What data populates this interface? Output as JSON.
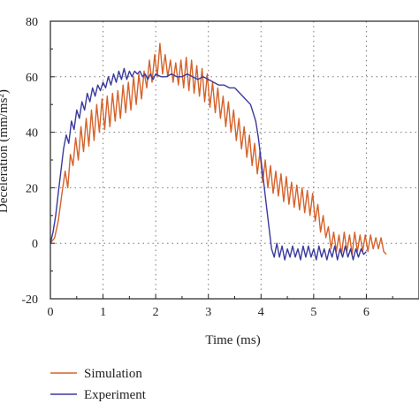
{
  "chart_data": {
    "type": "line",
    "title": "",
    "xlabel": "Time (ms)",
    "ylabel": "Deceleration (mm/ms²)",
    "xlim": [
      0,
      7
    ],
    "ylim": [
      -20,
      80
    ],
    "xticks": [
      0,
      1,
      2,
      3,
      4,
      5,
      6
    ],
    "yticks": [
      -20,
      0,
      20,
      40,
      60,
      80
    ],
    "grid": true,
    "grid_style": "dotted",
    "legend_placement": "bottom-left, below plot",
    "series": [
      {
        "name": "Simulation",
        "color": "#d5622a",
        "points": [
          [
            0.0,
            0
          ],
          [
            0.08,
            2
          ],
          [
            0.15,
            8
          ],
          [
            0.22,
            18
          ],
          [
            0.28,
            26
          ],
          [
            0.33,
            20
          ],
          [
            0.38,
            32
          ],
          [
            0.43,
            28
          ],
          [
            0.48,
            38
          ],
          [
            0.53,
            30
          ],
          [
            0.58,
            42
          ],
          [
            0.63,
            33
          ],
          [
            0.68,
            45
          ],
          [
            0.73,
            35
          ],
          [
            0.78,
            48
          ],
          [
            0.83,
            37
          ],
          [
            0.88,
            50
          ],
          [
            0.93,
            40
          ],
          [
            0.98,
            52
          ],
          [
            1.03,
            41
          ],
          [
            1.08,
            53
          ],
          [
            1.13,
            42
          ],
          [
            1.18,
            54
          ],
          [
            1.23,
            44
          ],
          [
            1.28,
            55
          ],
          [
            1.33,
            45
          ],
          [
            1.38,
            57
          ],
          [
            1.43,
            47
          ],
          [
            1.48,
            58
          ],
          [
            1.53,
            48
          ],
          [
            1.58,
            60
          ],
          [
            1.63,
            50
          ],
          [
            1.68,
            61
          ],
          [
            1.73,
            52
          ],
          [
            1.78,
            62
          ],
          [
            1.83,
            56
          ],
          [
            1.88,
            66
          ],
          [
            1.93,
            58
          ],
          [
            1.98,
            68
          ],
          [
            2.03,
            60
          ],
          [
            2.08,
            72
          ],
          [
            2.13,
            61
          ],
          [
            2.18,
            68
          ],
          [
            2.23,
            60
          ],
          [
            2.28,
            66
          ],
          [
            2.33,
            58
          ],
          [
            2.38,
            65
          ],
          [
            2.43,
            57
          ],
          [
            2.48,
            66
          ],
          [
            2.53,
            56
          ],
          [
            2.58,
            67
          ],
          [
            2.63,
            55
          ],
          [
            2.68,
            66
          ],
          [
            2.73,
            54
          ],
          [
            2.78,
            64
          ],
          [
            2.83,
            53
          ],
          [
            2.88,
            63
          ],
          [
            2.93,
            51
          ],
          [
            2.98,
            61
          ],
          [
            3.03,
            49
          ],
          [
            3.08,
            58
          ],
          [
            3.13,
            47
          ],
          [
            3.18,
            56
          ],
          [
            3.23,
            45
          ],
          [
            3.28,
            53
          ],
          [
            3.33,
            42
          ],
          [
            3.38,
            51
          ],
          [
            3.43,
            40
          ],
          [
            3.48,
            48
          ],
          [
            3.53,
            37
          ],
          [
            3.58,
            45
          ],
          [
            3.63,
            34
          ],
          [
            3.68,
            42
          ],
          [
            3.73,
            31
          ],
          [
            3.78,
            39
          ],
          [
            3.83,
            28
          ],
          [
            3.88,
            36
          ],
          [
            3.93,
            25
          ],
          [
            3.98,
            33
          ],
          [
            4.03,
            22
          ],
          [
            4.08,
            30
          ],
          [
            4.13,
            20
          ],
          [
            4.18,
            28
          ],
          [
            4.23,
            18
          ],
          [
            4.28,
            26
          ],
          [
            4.33,
            17
          ],
          [
            4.38,
            25
          ],
          [
            4.43,
            15
          ],
          [
            4.48,
            24
          ],
          [
            4.53,
            14
          ],
          [
            4.58,
            22
          ],
          [
            4.63,
            13
          ],
          [
            4.68,
            21
          ],
          [
            4.73,
            12
          ],
          [
            4.78,
            20
          ],
          [
            4.83,
            11
          ],
          [
            4.88,
            19
          ],
          [
            4.93,
            10
          ],
          [
            4.98,
            18
          ],
          [
            5.03,
            8
          ],
          [
            5.08,
            14
          ],
          [
            5.13,
            4
          ],
          [
            5.18,
            10
          ],
          [
            5.23,
            2
          ],
          [
            5.28,
            6
          ],
          [
            5.33,
            -2
          ],
          [
            5.38,
            4
          ],
          [
            5.43,
            -3
          ],
          [
            5.48,
            3
          ],
          [
            5.53,
            -4
          ],
          [
            5.58,
            4
          ],
          [
            5.63,
            -3
          ],
          [
            5.68,
            3
          ],
          [
            5.73,
            -4
          ],
          [
            5.78,
            4
          ],
          [
            5.83,
            -3
          ],
          [
            5.88,
            3
          ],
          [
            5.93,
            -3
          ],
          [
            5.98,
            3
          ],
          [
            6.03,
            -3
          ],
          [
            6.08,
            3
          ],
          [
            6.13,
            -2
          ],
          [
            6.18,
            2
          ],
          [
            6.23,
            -2
          ],
          [
            6.28,
            2
          ],
          [
            6.33,
            -3
          ],
          [
            6.38,
            -4
          ]
        ]
      },
      {
        "name": "Experiment",
        "color": "#3a3a9e",
        "points": [
          [
            0.0,
            0
          ],
          [
            0.05,
            4
          ],
          [
            0.1,
            10
          ],
          [
            0.15,
            18
          ],
          [
            0.2,
            26
          ],
          [
            0.25,
            34
          ],
          [
            0.3,
            39
          ],
          [
            0.35,
            36
          ],
          [
            0.4,
            44
          ],
          [
            0.45,
            41
          ],
          [
            0.5,
            48
          ],
          [
            0.55,
            45
          ],
          [
            0.6,
            51
          ],
          [
            0.65,
            48
          ],
          [
            0.7,
            54
          ],
          [
            0.75,
            51
          ],
          [
            0.8,
            56
          ],
          [
            0.85,
            53
          ],
          [
            0.9,
            57
          ],
          [
            0.95,
            55
          ],
          [
            1.0,
            58
          ],
          [
            1.05,
            56
          ],
          [
            1.1,
            60
          ],
          [
            1.15,
            57
          ],
          [
            1.2,
            61
          ],
          [
            1.25,
            58
          ],
          [
            1.3,
            62
          ],
          [
            1.35,
            59
          ],
          [
            1.4,
            63
          ],
          [
            1.45,
            59
          ],
          [
            1.5,
            62
          ],
          [
            1.55,
            60
          ],
          [
            1.6,
            62
          ],
          [
            1.65,
            61
          ],
          [
            1.7,
            62
          ],
          [
            1.75,
            60
          ],
          [
            1.8,
            61
          ],
          [
            1.85,
            59
          ],
          [
            1.9,
            61
          ],
          [
            1.95,
            59
          ],
          [
            2.0,
            61
          ],
          [
            2.1,
            60
          ],
          [
            2.2,
            60
          ],
          [
            2.3,
            61
          ],
          [
            2.4,
            60
          ],
          [
            2.5,
            60
          ],
          [
            2.6,
            61
          ],
          [
            2.7,
            60
          ],
          [
            2.8,
            59
          ],
          [
            2.9,
            60
          ],
          [
            3.0,
            59
          ],
          [
            3.1,
            58
          ],
          [
            3.2,
            57
          ],
          [
            3.3,
            57
          ],
          [
            3.4,
            56
          ],
          [
            3.5,
            56
          ],
          [
            3.6,
            54
          ],
          [
            3.7,
            52
          ],
          [
            3.8,
            50
          ],
          [
            3.85,
            47
          ],
          [
            3.9,
            44
          ],
          [
            3.95,
            38
          ],
          [
            4.0,
            30
          ],
          [
            4.05,
            22
          ],
          [
            4.1,
            14
          ],
          [
            4.15,
            6
          ],
          [
            4.2,
            -2
          ],
          [
            4.25,
            -5
          ],
          [
            4.3,
            0
          ],
          [
            4.35,
            -5
          ],
          [
            4.4,
            -1
          ],
          [
            4.45,
            -6
          ],
          [
            4.5,
            -2
          ],
          [
            4.55,
            -5
          ],
          [
            4.6,
            -1
          ],
          [
            4.65,
            -5
          ],
          [
            4.7,
            -2
          ],
          [
            4.75,
            -6
          ],
          [
            4.8,
            -1
          ],
          [
            4.85,
            -5
          ],
          [
            4.9,
            -1
          ],
          [
            4.95,
            -5
          ],
          [
            5.0,
            -2
          ],
          [
            5.05,
            -6
          ],
          [
            5.1,
            -1
          ],
          [
            5.15,
            -5
          ],
          [
            5.2,
            -2
          ],
          [
            5.25,
            -6
          ],
          [
            5.3,
            -2
          ],
          [
            5.35,
            -5
          ],
          [
            5.4,
            -1
          ],
          [
            5.45,
            -6
          ],
          [
            5.5,
            -2
          ],
          [
            5.55,
            -5
          ],
          [
            5.6,
            -1
          ],
          [
            5.65,
            -5
          ],
          [
            5.7,
            -2
          ],
          [
            5.75,
            -6
          ],
          [
            5.8,
            -2
          ],
          [
            5.85,
            -5
          ],
          [
            5.9,
            -2
          ],
          [
            5.95,
            -4
          ],
          [
            6.0,
            -3
          ]
        ]
      }
    ]
  }
}
